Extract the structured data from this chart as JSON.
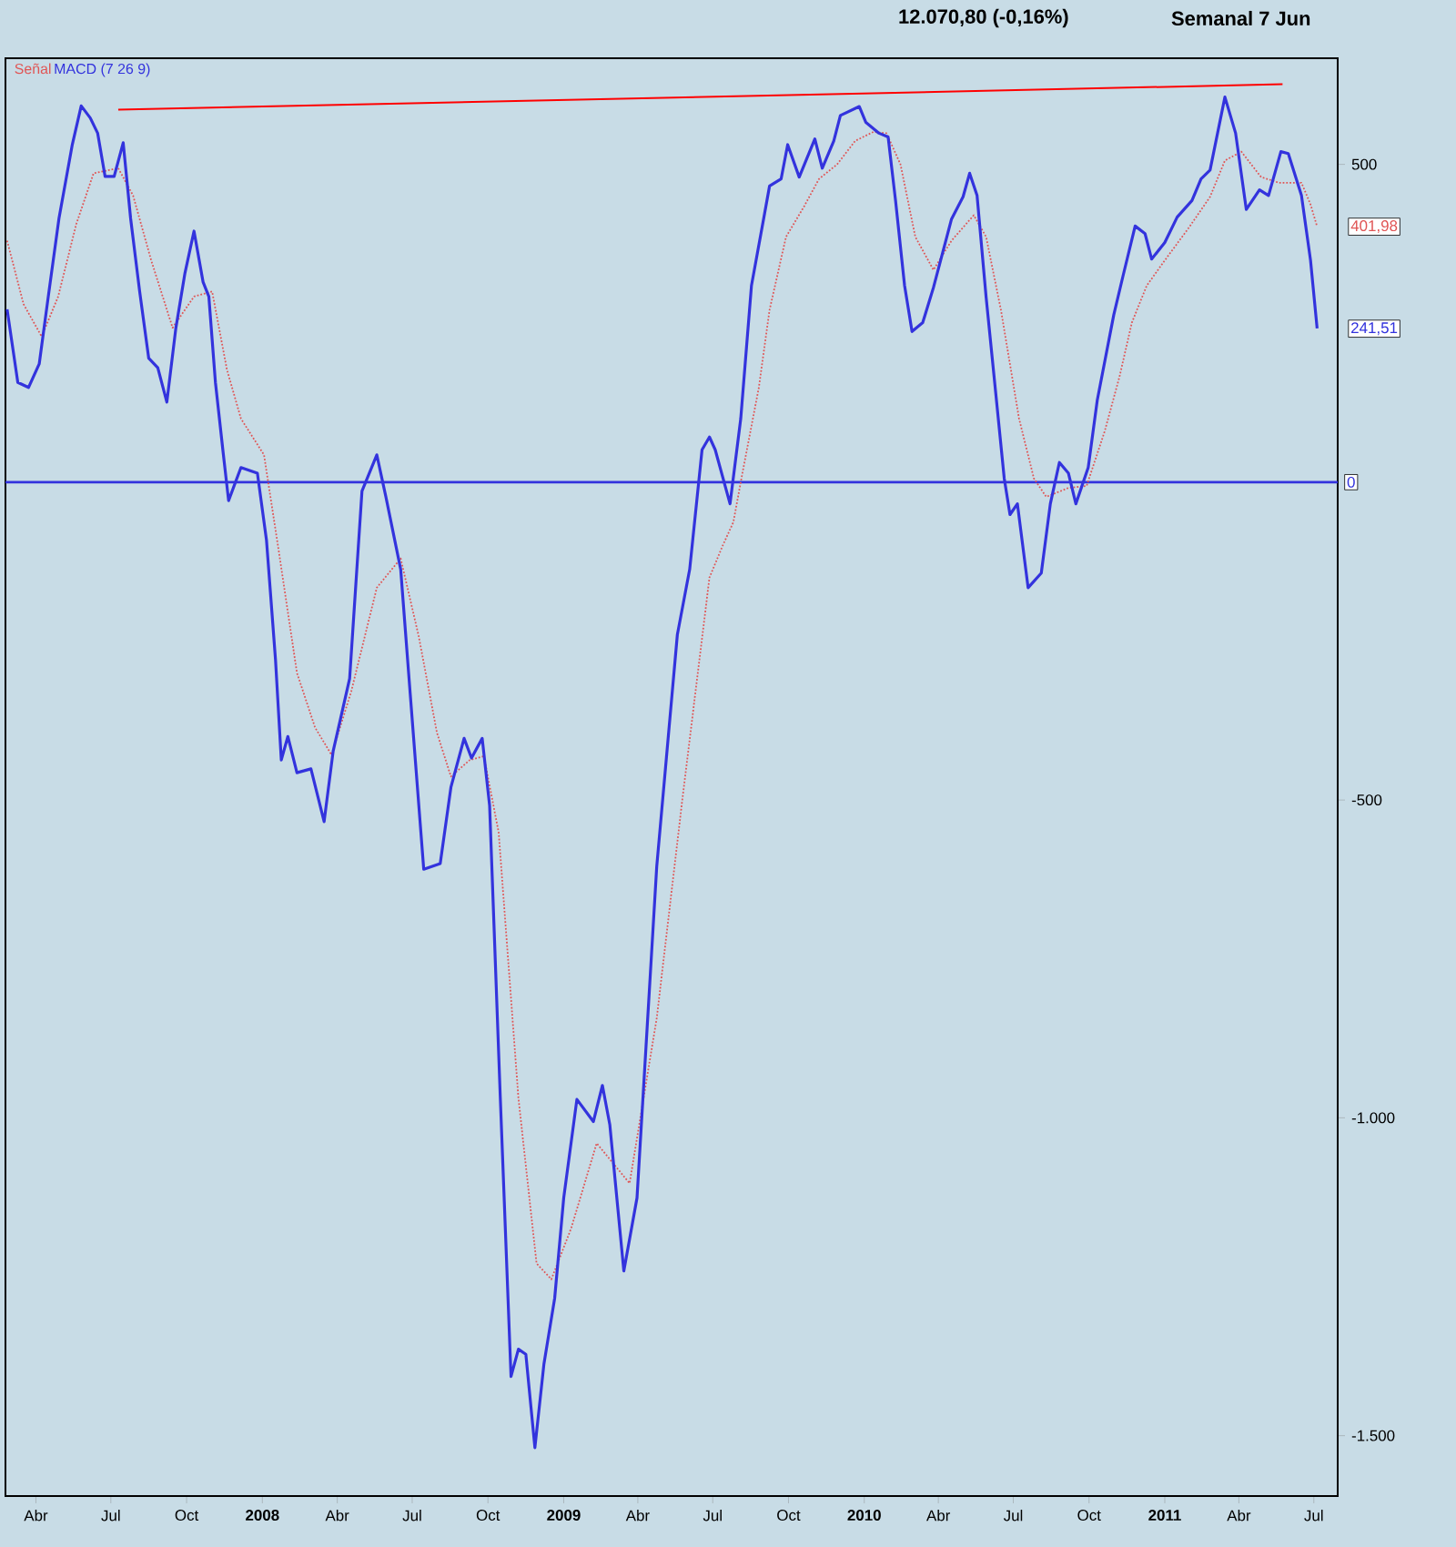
{
  "chart_data": {
    "type": "line",
    "title": "12.070,80 (-0,16%)",
    "subtitle": "Semanal  7 Jun",
    "xlim": [
      "2007-02-23",
      "2011-07-30"
    ],
    "ylim": [
      -1595,
      667
    ],
    "xticks": [
      {
        "value": "2007-04-01",
        "label": "Abr"
      },
      {
        "value": "2007-07-01",
        "label": "Jul"
      },
      {
        "value": "2007-10-01",
        "label": "Oct"
      },
      {
        "value": "2008-01-01",
        "label": "2008"
      },
      {
        "value": "2008-04-01",
        "label": "Abr"
      },
      {
        "value": "2008-07-01",
        "label": "Jul"
      },
      {
        "value": "2008-10-01",
        "label": "Oct"
      },
      {
        "value": "2009-01-01",
        "label": "2009"
      },
      {
        "value": "2009-04-01",
        "label": "Abr"
      },
      {
        "value": "2009-07-01",
        "label": "Jul"
      },
      {
        "value": "2009-10-01",
        "label": "Oct"
      },
      {
        "value": "2010-01-01",
        "label": "2010"
      },
      {
        "value": "2010-04-01",
        "label": "Abr"
      },
      {
        "value": "2010-07-01",
        "label": "Jul"
      },
      {
        "value": "2010-10-01",
        "label": "Oct"
      },
      {
        "value": "2011-01-01",
        "label": "2011"
      },
      {
        "value": "2011-04-01",
        "label": "Abr"
      },
      {
        "value": "2011-07-01",
        "label": "Jul"
      }
    ],
    "yticks": [
      500,
      {
        "value": -500,
        "label": "-500"
      },
      {
        "value": -1000,
        "label": "-1.000"
      },
      {
        "value": -1500,
        "label": "-1.500"
      }
    ],
    "legend": "top left",
    "ref_lines": [
      {
        "axis": "y",
        "value": 0,
        "label": "0",
        "color": "#3333dd"
      }
    ],
    "annotations": [
      {
        "text": "401,98",
        "x": "2011-07-05",
        "y": 401.98
      },
      {
        "text": "241,51",
        "x": "2011-07-05",
        "y": 241.51
      }
    ],
    "series": [
      {
        "name": "Señal",
        "color": "#e05555",
        "line_style": "dotted",
        "x": [
          "2007-02-25",
          "2007-03-17",
          "2007-04-08",
          "2007-04-28",
          "2007-05-20",
          "2007-06-10",
          "2007-07-10",
          "2007-07-28",
          "2007-08-19",
          "2007-09-14",
          "2007-10-10",
          "2007-11-01",
          "2007-11-19",
          "2007-12-06",
          "2008-01-03",
          "2008-01-21",
          "2008-02-12",
          "2008-03-05",
          "2008-03-25",
          "2008-04-18",
          "2008-05-19",
          "2008-06-17",
          "2008-07-09",
          "2008-07-31",
          "2008-08-17",
          "2008-09-09",
          "2008-09-26",
          "2008-10-14",
          "2008-11-07",
          "2008-11-29",
          "2008-12-17",
          "2009-01-10",
          "2009-02-10",
          "2009-03-22",
          "2009-04-24",
          "2009-05-25",
          "2009-06-27",
          "2009-07-13",
          "2009-07-26",
          "2009-08-06",
          "2009-08-26",
          "2009-09-08",
          "2009-09-28",
          "2009-10-20",
          "2009-11-07",
          "2009-11-29",
          "2009-12-21",
          "2010-01-12",
          "2010-01-28",
          "2010-02-14",
          "2010-03-04",
          "2010-03-26",
          "2010-04-17",
          "2010-05-14",
          "2010-05-29",
          "2010-06-16",
          "2010-07-08",
          "2010-07-26",
          "2010-08-10",
          "2010-09-06",
          "2010-09-28",
          "2010-10-20",
          "2010-11-07",
          "2010-11-22",
          "2010-12-10",
          "2011-01-01",
          "2011-01-30",
          "2011-02-25",
          "2011-03-15",
          "2011-04-04",
          "2011-04-28",
          "2011-05-20",
          "2011-06-16",
          "2011-06-27",
          "2011-07-05"
        ],
        "values": [
          380,
          280,
          229,
          292,
          406,
          486,
          494,
          451,
          349,
          243,
          292,
          300,
          177,
          100,
          43,
          -109,
          -300,
          -386,
          -429,
          -329,
          -166,
          -120,
          -243,
          -394,
          -463,
          -437,
          -431,
          -551,
          -969,
          -1229,
          -1254,
          -1174,
          -1040,
          -1103,
          -843,
          -500,
          -150,
          -100,
          -63,
          14,
          149,
          271,
          386,
          434,
          477,
          500,
          537,
          551,
          549,
          500,
          386,
          334,
          380,
          420,
          386,
          271,
          100,
          6,
          -23,
          -9,
          -6,
          80,
          166,
          251,
          309,
          349,
          400,
          449,
          506,
          520,
          480,
          471,
          471,
          437,
          402
        ]
      },
      {
        "name": "MACD (7 26 9)",
        "color": "#3333dd",
        "line_style": "solid",
        "x": [
          "2007-02-25",
          "2007-03-10",
          "2007-03-23",
          "2007-04-05",
          "2007-04-16",
          "2007-04-29",
          "2007-05-15",
          "2007-05-26",
          "2007-06-06",
          "2007-06-15",
          "2007-06-24",
          "2007-07-05",
          "2007-07-16",
          "2007-07-25",
          "2007-08-05",
          "2007-08-16",
          "2007-08-27",
          "2007-09-07",
          "2007-09-18",
          "2007-09-29",
          "2007-10-10",
          "2007-10-21",
          "2007-10-28",
          "2007-11-05",
          "2007-11-14",
          "2007-11-21",
          "2007-12-06",
          "2007-12-26",
          "2008-01-06",
          "2008-01-17",
          "2008-01-24",
          "2008-02-01",
          "2008-02-12",
          "2008-02-29",
          "2008-03-16",
          "2008-03-27",
          "2008-04-16",
          "2008-05-01",
          "2008-05-19",
          "2008-05-30",
          "2008-06-17",
          "2008-06-30",
          "2008-07-15",
          "2008-08-04",
          "2008-08-17",
          "2008-09-02",
          "2008-09-11",
          "2008-09-24",
          "2008-10-03",
          "2008-10-16",
          "2008-10-29",
          "2008-11-07",
          "2008-11-16",
          "2008-11-27",
          "2008-12-08",
          "2008-12-21",
          "2009-01-01",
          "2009-01-17",
          "2009-02-06",
          "2009-02-17",
          "2009-02-26",
          "2009-03-15",
          "2009-03-31",
          "2009-04-24",
          "2009-05-19",
          "2009-06-03",
          "2009-06-18",
          "2009-06-27",
          "2009-07-04",
          "2009-07-22",
          "2009-08-04",
          "2009-08-17",
          "2009-09-02",
          "2009-09-08",
          "2009-09-22",
          "2009-09-30",
          "2009-10-14",
          "2009-11-02",
          "2009-11-11",
          "2009-11-25",
          "2009-12-03",
          "2009-12-26",
          "2010-01-03",
          "2010-01-19",
          "2010-01-30",
          "2010-02-08",
          "2010-02-19",
          "2010-02-28",
          "2010-03-13",
          "2010-03-26",
          "2010-04-17",
          "2010-05-01",
          "2010-05-09",
          "2010-05-18",
          "2010-05-29",
          "2010-06-09",
          "2010-06-20",
          "2010-06-27",
          "2010-07-06",
          "2010-07-19",
          "2010-08-04",
          "2010-08-15",
          "2010-08-26",
          "2010-09-06",
          "2010-09-15",
          "2010-09-30",
          "2010-10-11",
          "2010-10-31",
          "2010-11-11",
          "2010-11-26",
          "2010-12-08",
          "2010-12-16",
          "2011-01-01",
          "2011-01-16",
          "2011-02-03",
          "2011-02-14",
          "2011-02-25",
          "2011-03-15",
          "2011-03-28",
          "2011-04-10",
          "2011-04-26",
          "2011-05-07",
          "2011-05-22",
          "2011-05-31",
          "2011-06-16",
          "2011-06-27",
          "2011-07-05"
        ],
        "values": [
          272,
          157,
          149,
          186,
          292,
          415,
          530,
          592,
          573,
          549,
          481,
          481,
          534,
          415,
          300,
          195,
          180,
          126,
          243,
          329,
          395,
          315,
          292,
          157,
          51,
          -29,
          23,
          14,
          -91,
          -280,
          -437,
          -400,
          -457,
          -451,
          -534,
          -423,
          -309,
          -14,
          43,
          -23,
          -137,
          -357,
          -609,
          -600,
          -480,
          -403,
          -434,
          -403,
          -509,
          -969,
          -1407,
          -1364,
          -1372,
          -1519,
          -1387,
          -1284,
          -1126,
          -971,
          -1006,
          -949,
          -1011,
          -1241,
          -1126,
          -604,
          -240,
          -137,
          51,
          71,
          51,
          -34,
          100,
          309,
          423,
          466,
          477,
          531,
          480,
          540,
          494,
          537,
          577,
          591,
          566,
          549,
          543,
          443,
          309,
          237,
          251,
          306,
          414,
          449,
          486,
          451,
          291,
          149,
          6,
          -51,
          -34,
          -166,
          -143,
          -34,
          31,
          14,
          -34,
          23,
          129,
          263,
          323,
          403,
          391,
          351,
          377,
          417,
          443,
          477,
          491,
          606,
          549,
          429,
          460,
          451,
          520,
          517,
          451,
          349,
          242
        ]
      },
      {
        "color": "#ff0000",
        "line_style": "solid",
        "x": [
          "2007-07-10",
          "2011-05-24"
        ],
        "values": [
          586,
          626
        ]
      }
    ]
  }
}
